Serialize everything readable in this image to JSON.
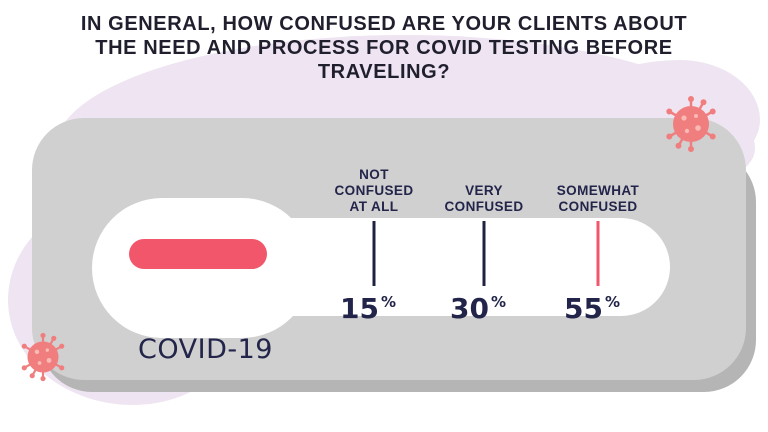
{
  "title": "IN GENERAL, HOW CONFUSED ARE YOUR CLIENTS ABOUT THE NEED AND PROCESS FOR COVID TESTING BEFORE TRAVELING?",
  "test_label": "COVID-19",
  "colors": {
    "accent": "#f2566a",
    "text": "#22244a",
    "cassette": "#d0d0d0",
    "cassette_shadow": "#b5b5b5",
    "background_blob": "#efe4f1",
    "virus": "#f07e7e"
  },
  "icons": {
    "virus_top": "virus-icon",
    "virus_bottom": "virus-icon",
    "control_mark": "test-control-line"
  },
  "chart_data": {
    "type": "bar",
    "title": "IN GENERAL, HOW CONFUSED ARE YOUR CLIENTS ABOUT THE NEED AND PROCESS FOR COVID TESTING BEFORE TRAVELING?",
    "categories": [
      [
        "NOT",
        "CONFUSED",
        "AT ALL"
      ],
      [
        "VERY",
        "CONFUSED"
      ],
      [
        "SOMEWHAT",
        "CONFUSED"
      ]
    ],
    "values": [
      15,
      30,
      55
    ],
    "unit": "%",
    "series_colors": [
      "#1f2340",
      "#1f2340",
      "#f2566a"
    ]
  }
}
